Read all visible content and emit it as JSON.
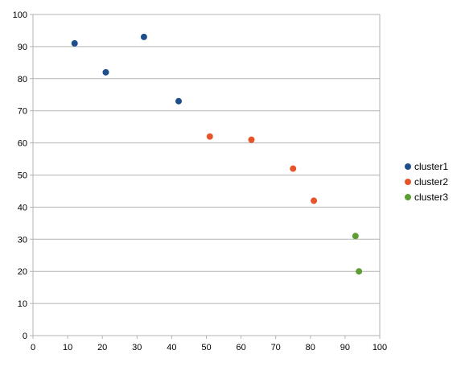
{
  "chart_data": {
    "type": "scatter",
    "title": "",
    "xlabel": "",
    "ylabel": "",
    "xlim": [
      0,
      100
    ],
    "ylim": [
      0,
      100
    ],
    "xticks": [
      0,
      10,
      20,
      30,
      40,
      50,
      60,
      70,
      80,
      90,
      100
    ],
    "yticks": [
      0,
      10,
      20,
      30,
      40,
      50,
      60,
      70,
      80,
      90,
      100
    ],
    "grid": "horizontal",
    "legend": "right",
    "series": [
      {
        "name": "cluster1",
        "color": "#1f4e8c",
        "points": [
          [
            12,
            91
          ],
          [
            21,
            82
          ],
          [
            32,
            93
          ],
          [
            42,
            73
          ]
        ]
      },
      {
        "name": "cluster2",
        "color": "#e8542a",
        "points": [
          [
            51,
            62
          ],
          [
            63,
            61
          ],
          [
            75,
            52
          ],
          [
            81,
            42
          ]
        ]
      },
      {
        "name": "cluster3",
        "color": "#5c9e31",
        "points": [
          [
            93,
            31
          ],
          [
            94,
            20
          ]
        ]
      }
    ]
  }
}
